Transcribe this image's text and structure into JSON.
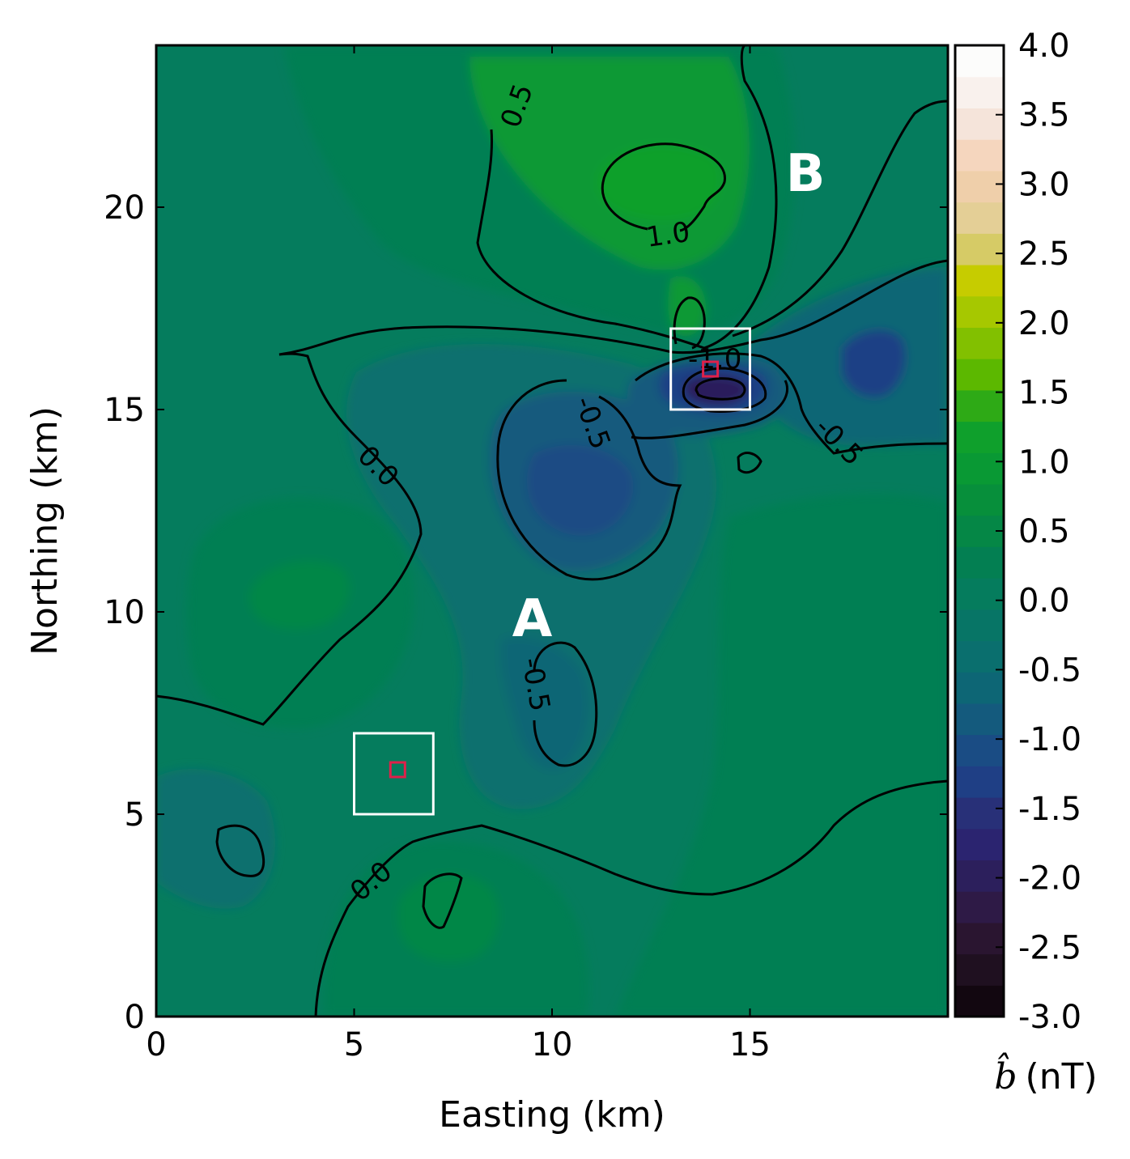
{
  "chart_data": {
    "type": "contour-map",
    "xlabel": "Easting (km)",
    "ylabel": "Northing (km)",
    "xlim": [
      0,
      20
    ],
    "ylim": [
      0,
      24
    ],
    "x_ticks": [
      "0",
      "5",
      "10",
      "15"
    ],
    "y_ticks": [
      "0",
      "5",
      "10",
      "15",
      "20"
    ],
    "colorbar": {
      "label_symbol": "b̂",
      "label_unit": "(nT)",
      "range": [
        -3.0,
        4.0
      ],
      "tick_labels": [
        "4.0",
        "3.5",
        "3.0",
        "2.5",
        "2.0",
        "1.5",
        "1.0",
        "0.5",
        "0.0",
        "-0.5",
        "-1.0",
        "-1.5",
        "-2.0",
        "-2.5",
        "-3.0"
      ],
      "colors": [
        "#120710",
        "#1f1020",
        "#2a1530",
        "#2e1a46",
        "#2c1f5c",
        "#2b2470",
        "#283078",
        "#1f3f85",
        "#1a4c84",
        "#145a7d",
        "#0d6675",
        "#0a6f6e",
        "#077566",
        "#057c5d",
        "#037f52",
        "#058746",
        "#078f3b",
        "#099934",
        "#0fa02c",
        "#2eaa16",
        "#5cb800",
        "#82c000",
        "#a6c800",
        "#c6cc00",
        "#d6cb66",
        "#e4cf96",
        "#efcfaa",
        "#f5d6be",
        "#f5e4da",
        "#f9f1ed",
        "#fcfcfb"
      ]
    },
    "contour_levels": [
      "0.5",
      "1.0",
      "-1.0",
      "-0.5",
      "-0.5",
      "0.0",
      "-0.5",
      "0.0"
    ],
    "annotations": [
      {
        "text": "A",
        "x": 9.5,
        "y": 9.4,
        "color": "#ffffff"
      },
      {
        "text": "B",
        "x": 16.4,
        "y": 20.4,
        "color": "#ffffff"
      }
    ],
    "boxes": [
      {
        "x": [
          13,
          15
        ],
        "y": [
          15,
          17
        ]
      },
      {
        "x": [
          5,
          7
        ],
        "y": [
          5,
          7
        ]
      }
    ],
    "markers": [
      {
        "x": 14,
        "y": 16
      },
      {
        "x": 6.1,
        "y": 6.1
      }
    ]
  }
}
